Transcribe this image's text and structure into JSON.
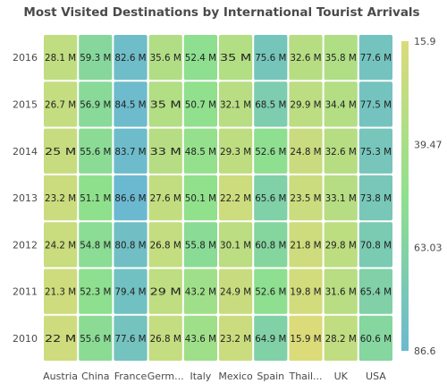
{
  "chart_data": {
    "type": "heatmap",
    "title": "Most Visited Destinations by International Tourist Arrivals",
    "x_categories": [
      "Austria",
      "China",
      "France",
      "Germ...",
      "Italy",
      "Mexico",
      "Spain",
      "Thail...",
      "UK",
      "USA"
    ],
    "y_categories": [
      "2016",
      "2015",
      "2014",
      "2013",
      "2012",
      "2011",
      "2010"
    ],
    "values": [
      [
        28.1,
        59.3,
        82.6,
        35.6,
        52.4,
        35,
        75.6,
        32.6,
        35.8,
        77.6
      ],
      [
        26.7,
        56.9,
        84.5,
        35,
        50.7,
        32.1,
        68.5,
        29.9,
        34.4,
        77.5
      ],
      [
        25,
        55.6,
        83.7,
        33,
        48.5,
        29.3,
        52.6,
        24.8,
        32.6,
        75.3
      ],
      [
        23.2,
        51.1,
        86.6,
        27.6,
        50.1,
        22.2,
        65.6,
        23.5,
        33.1,
        73.8
      ],
      [
        24.2,
        54.8,
        80.8,
        26.8,
        55.8,
        30.1,
        60.8,
        21.8,
        29.8,
        70.8
      ],
      [
        21.3,
        52.3,
        79.4,
        29,
        43.2,
        24.9,
        52.6,
        19.8,
        31.6,
        65.4
      ],
      [
        22,
        55.6,
        77.6,
        26.8,
        43.6,
        23.2,
        64.9,
        15.9,
        28.2,
        60.6
      ]
    ],
    "cell_labels": [
      [
        "28.1 M",
        "59.3 M",
        "82.6 M",
        "35.6 M",
        "52.4 M",
        "35 M",
        "75.6 M",
        "32.6 M",
        "35.8 M",
        "77.6 M"
      ],
      [
        "26.7 M",
        "56.9 M",
        "84.5 M",
        "35 M",
        "50.7 M",
        "32.1 M",
        "68.5 M",
        "29.9 M",
        "34.4 M",
        "77.5 M"
      ],
      [
        "25 M",
        "55.6 M",
        "83.7 M",
        "33 M",
        "48.5 M",
        "29.3 M",
        "52.6 M",
        "24.8 M",
        "32.6 M",
        "75.3 M"
      ],
      [
        "23.2 M",
        "51.1 M",
        "86.6 M",
        "27.6 M",
        "50.1 M",
        "22.2 M",
        "65.6 M",
        "23.5 M",
        "33.1 M",
        "73.8 M"
      ],
      [
        "24.2 M",
        "54.8 M",
        "80.8 M",
        "26.8 M",
        "55.8 M",
        "30.1 M",
        "60.8 M",
        "21.8 M",
        "29.8 M",
        "70.8 M"
      ],
      [
        "21.3 M",
        "52.3 M",
        "79.4 M",
        "29 M",
        "43.2 M",
        "24.9 M",
        "52.6 M",
        "19.8 M",
        "31.6 M",
        "65.4 M"
      ],
      [
        "22 M",
        "55.6 M",
        "77.6 M",
        "26.8 M",
        "43.6 M",
        "23.2 M",
        "64.9 M",
        "15.9 M",
        "28.2 M",
        "60.6 M"
      ]
    ],
    "color_range": [
      15.9,
      86.6
    ],
    "color_stops": [
      "#DBDB7A",
      "#8FE08D",
      "#6BB9D0"
    ],
    "legend": {
      "placement": "right",
      "labels": [
        "15.9",
        "39.47",
        "63.03",
        "86.6"
      ]
    }
  }
}
